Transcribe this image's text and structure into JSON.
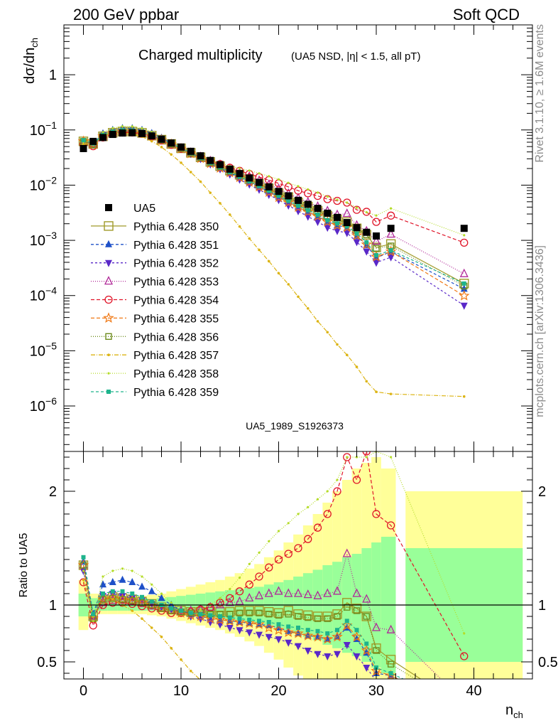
{
  "header": {
    "left": "200 GeV ppbar",
    "right": "Soft QCD"
  },
  "side_text": {
    "right_upper": "Rivet 3.1.10, ≥ 1.6M events",
    "right_lower": "mcplots.cern.ch [arXiv:1306.3436]"
  },
  "chart_data": [
    {
      "type": "line",
      "panel": "main",
      "title": "Charged multiplicity",
      "subtitle": "(UA5 NSD, |η| < 1.5, all pT)",
      "watermark": "UA5_1989_S1926373",
      "ylabel": "dσ/dn_ch",
      "ylabel_main": "dσ/dn",
      "ylabel_sub": "ch",
      "yscale": "log",
      "ylim": [
        1.5e-07,
        8
      ],
      "xlim": [
        -2,
        46
      ],
      "y_ticks": [
        {
          "value": 1e-06,
          "base": "10",
          "exp": "−6"
        },
        {
          "value": 1e-05,
          "base": "10",
          "exp": "−5"
        },
        {
          "value": 0.0001,
          "base": "10",
          "exp": "−4"
        },
        {
          "value": 0.001,
          "base": "10",
          "exp": "−3"
        },
        {
          "value": 0.01,
          "base": "10",
          "exp": "−2"
        },
        {
          "value": 0.1,
          "base": "10",
          "exp": "−1"
        },
        {
          "value": 1,
          "base": "1",
          "exp": ""
        }
      ],
      "legend_position": "left",
      "data_series": {
        "name": "UA5",
        "x": [
          0,
          1,
          2,
          3,
          4,
          5,
          6,
          7,
          8,
          9,
          10,
          11,
          12,
          13,
          14,
          15,
          16,
          17,
          18,
          19,
          20,
          21,
          22,
          23,
          24,
          25,
          26,
          27,
          28,
          29,
          30,
          31.5,
          39
        ],
        "y": [
          0.046,
          0.062,
          0.073,
          0.083,
          0.088,
          0.089,
          0.086,
          0.078,
          0.068,
          0.058,
          0.049,
          0.041,
          0.034,
          0.028,
          0.0235,
          0.0195,
          0.0162,
          0.0135,
          0.0112,
          0.0093,
          0.0077,
          0.0064,
          0.0053,
          0.0045,
          0.0038,
          0.0031,
          0.0026,
          0.0021,
          0.0017,
          0.0014,
          0.0012,
          0.00165,
          0.00165
        ]
      },
      "series": [
        {
          "name": "Pythia 6.428 350",
          "color": "#a09a28",
          "dash": "solid",
          "marker": "open-square-large",
          "ratio": [
            1.35,
            0.9,
            1.05,
            1.07,
            1.06,
            1.05,
            1.03,
            1.01,
            0.98,
            0.96,
            0.95,
            0.94,
            0.94,
            0.94,
            0.94,
            0.94,
            0.95,
            0.95,
            0.95,
            0.94,
            0.93,
            0.95,
            0.92,
            0.91,
            0.9,
            0.9,
            0.92,
            1.02,
            0.97,
            0.9,
            0.62,
            0.52,
            0.1
          ]
        },
        {
          "name": "Pythia 6.428 351",
          "color": "#1e50c8",
          "dash": "4,3",
          "marker": "triangle-up",
          "ratio": [
            1.38,
            0.92,
            1.18,
            1.2,
            1.22,
            1.2,
            1.16,
            1.12,
            1.06,
            1.0,
            0.95,
            0.92,
            0.9,
            0.88,
            0.87,
            0.86,
            0.85,
            0.84,
            0.83,
            0.82,
            0.8,
            0.77,
            0.75,
            0.73,
            0.72,
            0.7,
            0.72,
            0.8,
            0.7,
            0.58,
            0.4,
            0.38,
            0.08
          ]
        },
        {
          "name": "Pythia 6.428 352",
          "color": "#5a28c8",
          "dash": "3,3",
          "marker": "triangle-down",
          "ratio": [
            1.3,
            0.88,
            1.08,
            1.1,
            1.08,
            1.06,
            1.04,
            1.01,
            0.98,
            0.96,
            0.94,
            0.9,
            0.88,
            0.85,
            0.83,
            0.8,
            0.78,
            0.76,
            0.74,
            0.72,
            0.7,
            0.67,
            0.64,
            0.6,
            0.57,
            0.55,
            0.57,
            0.65,
            0.55,
            0.45,
            0.33,
            0.3,
            0.04
          ]
        },
        {
          "name": "Pythia 6.428 353",
          "color": "#b02898",
          "dash": "1,2",
          "marker": "open-triangle",
          "ratio": [
            1.35,
            0.9,
            1.02,
            1.04,
            1.04,
            1.03,
            1.01,
            0.99,
            0.97,
            0.95,
            0.95,
            0.95,
            0.96,
            0.98,
            1.0,
            1.02,
            1.03,
            1.06,
            1.08,
            1.1,
            1.12,
            1.1,
            1.1,
            1.09,
            1.08,
            1.1,
            1.12,
            1.45,
            1.1,
            1.05,
            0.8,
            0.78,
            0.15
          ]
        },
        {
          "name": "Pythia 6.428 354",
          "color": "#e01428",
          "dash": "5,3",
          "marker": "open-circle",
          "ratio": [
            1.2,
            0.82,
            1.0,
            1.02,
            1.02,
            1.01,
            0.99,
            0.97,
            0.95,
            0.93,
            0.93,
            0.94,
            0.96,
            0.98,
            1.02,
            1.06,
            1.12,
            1.18,
            1.25,
            1.33,
            1.4,
            1.45,
            1.5,
            1.58,
            1.68,
            1.8,
            2.0,
            2.3,
            2.1,
            2.35,
            1.8,
            1.7,
            0.55
          ]
        },
        {
          "name": "Pythia 6.428 355",
          "color": "#f07814",
          "dash": "5,3",
          "marker": "open-star",
          "ratio": [
            1.35,
            0.88,
            1.05,
            1.06,
            1.05,
            1.04,
            1.02,
            1.0,
            0.97,
            0.95,
            0.93,
            0.91,
            0.9,
            0.88,
            0.87,
            0.86,
            0.85,
            0.84,
            0.83,
            0.8,
            0.78,
            0.76,
            0.75,
            0.73,
            0.72,
            0.7,
            0.72,
            0.82,
            0.72,
            0.6,
            0.42,
            0.38,
            0.06
          ]
        },
        {
          "name": "Pythia 6.428 356",
          "color": "#6e8c1e",
          "dash": "1,2",
          "marker": "open-square-small",
          "ratio": [
            1.35,
            0.88,
            1.05,
            1.06,
            1.05,
            1.04,
            1.02,
            1.0,
            0.97,
            0.95,
            0.94,
            0.93,
            0.93,
            0.92,
            0.92,
            0.92,
            0.93,
            0.93,
            0.93,
            0.92,
            0.91,
            0.92,
            0.9,
            0.89,
            0.88,
            0.88,
            0.9,
            0.98,
            0.95,
            0.9,
            0.6,
            0.48,
            0.09
          ]
        },
        {
          "name": "Pythia 6.428 357",
          "color": "#dcb414",
          "dash": "6,2,1,2",
          "marker": "dot-bar",
          "ratio": [
            1.22,
            0.9,
            1.1,
            1.05,
            1.0,
            0.95,
            0.88,
            0.8,
            0.72,
            0.62,
            0.52,
            0.42,
            0.34,
            0.26,
            0.2,
            0.15,
            0.11,
            0.08,
            0.06,
            0.045,
            0.033,
            0.025,
            0.018,
            0.013,
            0.009,
            0.007,
            0.005,
            0.004,
            0.003,
            0.002,
            0.0015,
            0.001,
            0.0009
          ]
        },
        {
          "name": "Pythia 6.428 358",
          "color": "#b4dc28",
          "dash": "1,2",
          "marker": "dot-small",
          "ratio": [
            1.3,
            0.86,
            1.25,
            1.3,
            1.32,
            1.3,
            1.25,
            1.18,
            1.1,
            1.02,
            0.96,
            0.94,
            0.96,
            1.0,
            1.06,
            1.14,
            1.24,
            1.36,
            1.46,
            1.56,
            1.65,
            1.72,
            1.8,
            1.86,
            1.93,
            2.0,
            2.1,
            2.3,
            2.3,
            2.3,
            2.35,
            2.3,
            0.75
          ]
        },
        {
          "name": "Pythia 6.428 359",
          "color": "#1eb48c",
          "dash": "4,3",
          "marker": "square-small",
          "ratio": [
            1.42,
            0.92,
            1.1,
            1.12,
            1.12,
            1.1,
            1.07,
            1.03,
            1.0,
            0.97,
            0.95,
            0.93,
            0.92,
            0.91,
            0.9,
            0.89,
            0.88,
            0.87,
            0.86,
            0.85,
            0.83,
            0.81,
            0.8,
            0.78,
            0.77,
            0.75,
            0.78,
            0.86,
            0.78,
            0.66,
            0.45,
            0.4,
            0.1
          ]
        }
      ]
    },
    {
      "type": "line",
      "panel": "ratio",
      "ylabel": "Ratio to UA5",
      "xlabel": "n_ch",
      "xlabel_main": "n",
      "xlabel_sub": "ch",
      "ylim": [
        0.35,
        2.35
      ],
      "xlim": [
        -2,
        46
      ],
      "x_ticks": [
        0,
        10,
        20,
        30,
        40
      ],
      "y_ticks": [
        {
          "value": 0.5,
          "label": "0.5"
        },
        {
          "value": 1,
          "label": "1"
        },
        {
          "value": 2,
          "label": "2"
        }
      ],
      "bands": {
        "x": [
          0,
          1,
          2,
          3,
          4,
          5,
          6,
          7,
          8,
          9,
          10,
          11,
          12,
          13,
          14,
          15,
          16,
          17,
          18,
          19,
          20,
          21,
          22,
          23,
          24,
          25,
          26,
          27,
          28,
          29,
          30,
          31.5,
          39
        ],
        "green_half": [
          0.1,
          0.06,
          0.05,
          0.05,
          0.05,
          0.05,
          0.05,
          0.05,
          0.06,
          0.07,
          0.08,
          0.09,
          0.1,
          0.11,
          0.12,
          0.13,
          0.14,
          0.15,
          0.16,
          0.18,
          0.2,
          0.22,
          0.25,
          0.28,
          0.31,
          0.35,
          0.38,
          0.42,
          0.45,
          0.5,
          0.55,
          0.6,
          0.5
        ],
        "yellow_half": [
          0.22,
          0.1,
          0.08,
          0.08,
          0.08,
          0.08,
          0.08,
          0.09,
          0.1,
          0.12,
          0.14,
          0.16,
          0.18,
          0.2,
          0.22,
          0.25,
          0.28,
          0.32,
          0.36,
          0.42,
          0.48,
          0.55,
          0.62,
          0.7,
          0.8,
          0.9,
          1.0,
          1.1,
          1.2,
          1.25,
          1.3,
          1.2,
          1.0
        ]
      }
    }
  ]
}
